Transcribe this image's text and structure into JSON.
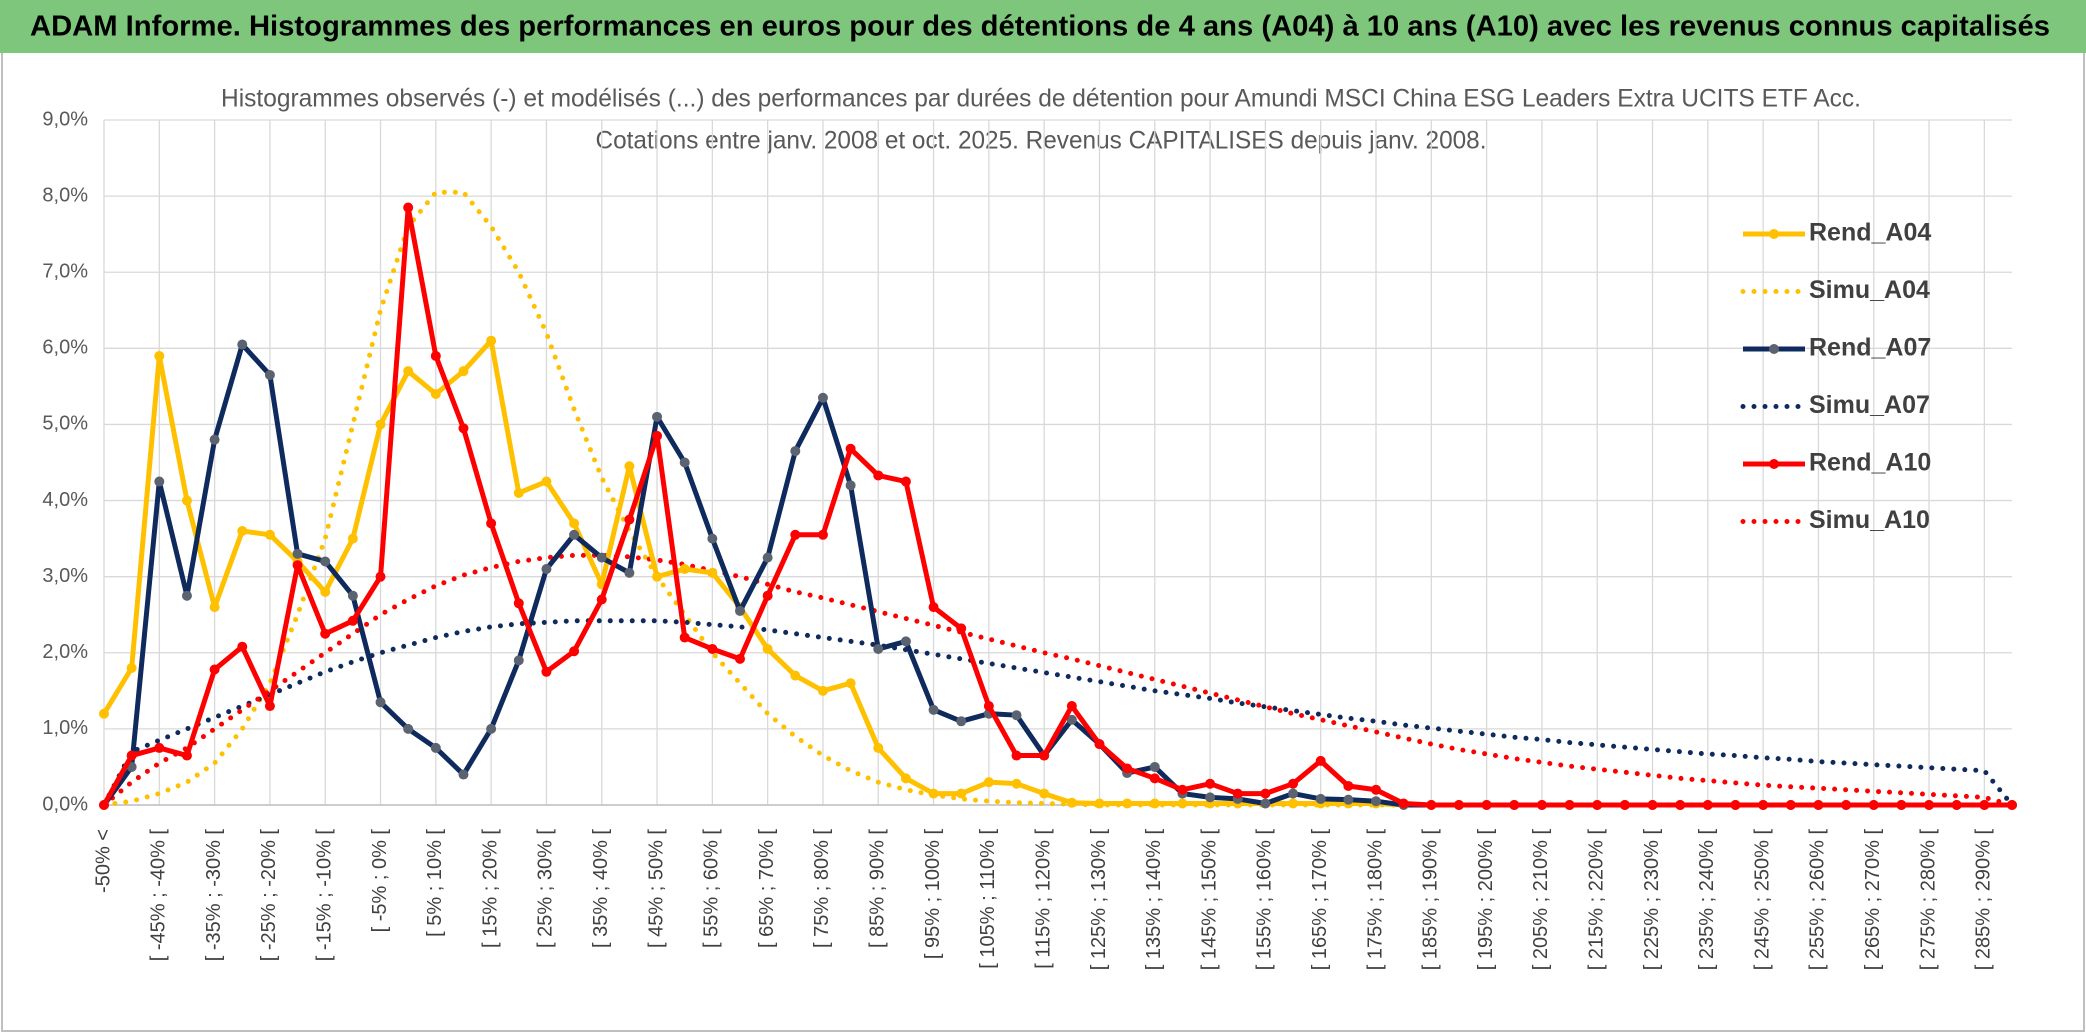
{
  "chart_data": {
    "type": "line",
    "title": "ADAM Informe. Histogrammes des performances en euros pour des détentions de 4 ans (A04) à 10 ans (A10) avec les revenus connus capitalisés",
    "subtitle": [
      "Histogrammes observés (-) et modélisés (...) des performances par durées de détention pour Amundi MSCI China ESG Leaders Extra UCITS ETF Acc.",
      "Cotations entre janv. 2008 et oct. 2025. Revenus CAPITALISES depuis janv. 2008."
    ],
    "categories": [
      "-50% <",
      null,
      "[ -45% ; -40% [",
      null,
      "[ -35% ; -30% [",
      null,
      "[ -25% ; -20% [",
      null,
      "[ -15% ; -10% [",
      null,
      "[ -5% ; 0% [",
      null,
      "[ 5% ; 10% [",
      null,
      "[ 15% ; 20% [",
      null,
      "[ 25% ; 30% [",
      null,
      "[ 35% ; 40% [",
      null,
      "[ 45% ; 50% [",
      null,
      "[ 55% ; 60% [",
      null,
      "[ 65% ; 70% [",
      null,
      "[ 75% ; 80% [",
      null,
      "[ 85% ; 90% [",
      null,
      "[ 95% ; 100% [",
      null,
      "[ 105% ; 110% [",
      null,
      "[ 115% ; 120% [",
      null,
      "[ 125% ; 130% [",
      null,
      "[ 135% ; 140% [",
      null,
      "[ 145% ; 150% [",
      null,
      "[ 155% ; 160% [",
      null,
      "[ 165% ; 170% [",
      null,
      "[ 175% ; 180% [",
      null,
      "[ 185% ; 190% [",
      null,
      "[ 195% ; 200% [",
      null,
      "[ 205% ; 210% [",
      null,
      "[ 215% ; 220% [",
      null,
      "[ 225% ; 230% [",
      null,
      "[ 235% ; 240% [",
      null,
      "[ 245% ; 250% [",
      null,
      "[ 255% ; 260% [",
      null,
      "[ 265% ; 270% [",
      null,
      "[ 275% ; 280% [",
      null,
      "[ 285% ; 290% [",
      null
    ],
    "series": [
      {
        "name": "Rend_A04",
        "color": "#ffc000",
        "marker_color": "#ffc000",
        "line_style": "solid",
        "markers": true,
        "values": [
          1.2,
          1.8,
          5.9,
          4.0,
          2.6,
          3.6,
          3.55,
          3.2,
          2.8,
          3.5,
          5.0,
          5.7,
          5.4,
          5.7,
          6.1,
          4.1,
          4.25,
          3.7,
          2.9,
          4.45,
          3.0,
          3.1,
          3.05,
          2.6,
          2.05,
          1.7,
          1.5,
          1.6,
          0.75,
          0.35,
          0.15,
          0.15,
          0.3,
          0.28,
          0.15,
          0.03,
          0.02,
          0.02,
          0.02,
          0.02,
          0.02,
          0.02,
          0.02,
          0.02,
          0.02,
          0.02,
          0.02,
          0,
          0,
          0,
          0,
          0,
          0,
          0,
          0,
          0,
          0,
          0,
          0,
          0,
          0,
          0,
          0,
          0,
          0,
          0,
          0,
          0,
          0,
          0
        ]
      },
      {
        "name": "Simu_A04",
        "color": "#ffc000",
        "line_style": "dotted",
        "markers": false,
        "values": [
          0,
          0.05,
          0.15,
          0.3,
          0.55,
          1.0,
          1.6,
          2.5,
          3.5,
          5.0,
          6.5,
          7.6,
          8.05,
          8.05,
          7.6,
          7.0,
          6.2,
          5.2,
          4.3,
          3.6,
          3.0,
          2.5,
          2.0,
          1.6,
          1.2,
          0.9,
          0.65,
          0.45,
          0.3,
          0.2,
          0.13,
          0.08,
          0.05,
          0.03,
          0.02,
          0.01,
          0,
          0,
          0,
          0,
          0,
          0,
          0,
          0,
          0,
          0,
          0,
          0,
          0,
          0,
          0,
          0,
          0,
          0,
          0,
          0,
          0,
          0,
          0,
          0,
          0,
          0,
          0,
          0,
          0,
          0,
          0,
          0,
          0,
          0
        ]
      },
      {
        "name": "Rend_A07",
        "color": "#0f2a5c",
        "marker_color": "#5b6370",
        "line_style": "solid",
        "markers": true,
        "values": [
          0,
          0.5,
          4.25,
          2.75,
          4.8,
          6.05,
          5.65,
          3.3,
          3.2,
          2.75,
          1.35,
          1.0,
          0.75,
          0.4,
          1.0,
          1.9,
          3.1,
          3.55,
          3.25,
          3.05,
          5.1,
          4.5,
          3.5,
          2.55,
          3.25,
          4.65,
          5.35,
          4.2,
          2.05,
          2.15,
          1.25,
          1.1,
          1.2,
          1.18,
          0.65,
          1.12,
          0.8,
          0.42,
          0.5,
          0.15,
          0.1,
          0.08,
          0.02,
          0.15,
          0.08,
          0.07,
          0.05,
          0,
          0,
          0,
          0,
          0,
          0,
          0,
          0,
          0,
          0,
          0,
          0,
          0,
          0,
          0,
          0,
          0,
          0,
          0,
          0,
          0,
          0,
          0
        ]
      },
      {
        "name": "Simu_A07",
        "color": "#0f2a5c",
        "line_style": "dotted",
        "markers": false,
        "values": [
          0,
          0.7,
          0.85,
          1.0,
          1.15,
          1.3,
          1.45,
          1.6,
          1.75,
          1.88,
          2.0,
          2.1,
          2.2,
          2.28,
          2.34,
          2.38,
          2.4,
          2.42,
          2.42,
          2.42,
          2.42,
          2.4,
          2.37,
          2.34,
          2.3,
          2.25,
          2.2,
          2.15,
          2.1,
          2.04,
          1.98,
          1.92,
          1.86,
          1.8,
          1.74,
          1.68,
          1.62,
          1.56,
          1.5,
          1.45,
          1.4,
          1.34,
          1.29,
          1.24,
          1.19,
          1.14,
          1.1,
          1.05,
          1.01,
          0.97,
          0.93,
          0.89,
          0.86,
          0.82,
          0.79,
          0.76,
          0.73,
          0.7,
          0.67,
          0.65,
          0.62,
          0.6,
          0.57,
          0.55,
          0.53,
          0.51,
          0.49,
          0.47,
          0.45,
          0
        ]
      },
      {
        "name": "Rend_A10",
        "color": "#ff0000",
        "marker_color": "#ff0000",
        "line_style": "solid",
        "markers": true,
        "values": [
          0,
          0.65,
          0.75,
          0.65,
          1.78,
          2.08,
          1.3,
          3.15,
          2.25,
          2.42,
          3.0,
          7.85,
          5.9,
          4.95,
          3.7,
          2.65,
          1.75,
          2.02,
          2.7,
          3.75,
          4.85,
          2.2,
          2.05,
          1.92,
          2.75,
          3.55,
          3.55,
          4.68,
          4.33,
          4.25,
          2.6,
          2.32,
          1.3,
          0.65,
          0.65,
          1.3,
          0.8,
          0.48,
          0.35,
          0.2,
          0.28,
          0.15,
          0.15,
          0.28,
          0.58,
          0.25,
          0.2,
          0.02,
          0,
          0,
          0,
          0,
          0,
          0,
          0,
          0,
          0,
          0,
          0,
          0,
          0,
          0,
          0,
          0,
          0,
          0,
          0,
          0,
          0,
          0
        ]
      },
      {
        "name": "Simu_A10",
        "color": "#ff0000",
        "line_style": "dotted",
        "markers": false,
        "values": [
          0,
          0.3,
          0.55,
          0.75,
          1.0,
          1.25,
          1.5,
          1.75,
          2.0,
          2.25,
          2.5,
          2.7,
          2.88,
          3.02,
          3.12,
          3.2,
          3.25,
          3.28,
          3.28,
          3.26,
          3.22,
          3.16,
          3.08,
          3.0,
          2.9,
          2.8,
          2.72,
          2.63,
          2.54,
          2.45,
          2.36,
          2.27,
          2.18,
          2.09,
          2.0,
          1.92,
          1.83,
          1.74,
          1.65,
          1.56,
          1.47,
          1.38,
          1.29,
          1.2,
          1.12,
          1.04,
          0.96,
          0.88,
          0.8,
          0.73,
          0.67,
          0.61,
          0.56,
          0.51,
          0.47,
          0.43,
          0.39,
          0.35,
          0.32,
          0.29,
          0.26,
          0.24,
          0.22,
          0.2,
          0.18,
          0.16,
          0.14,
          0.12,
          0.1,
          0
        ]
      }
    ],
    "ylim": [
      0,
      9
    ],
    "yticks": [
      {
        "value": 0,
        "label": "0,0%"
      },
      {
        "value": 1,
        "label": "1,0%"
      },
      {
        "value": 2,
        "label": "2,0%"
      },
      {
        "value": 3,
        "label": "3,0%"
      },
      {
        "value": 4,
        "label": "4,0%"
      },
      {
        "value": 5,
        "label": "5,0%"
      },
      {
        "value": 6,
        "label": "6,0%"
      },
      {
        "value": 7,
        "label": "7,0%"
      },
      {
        "value": 8,
        "label": "8,0%"
      },
      {
        "value": 9,
        "label": "9,0%"
      }
    ],
    "grid": true,
    "legend": "right"
  }
}
